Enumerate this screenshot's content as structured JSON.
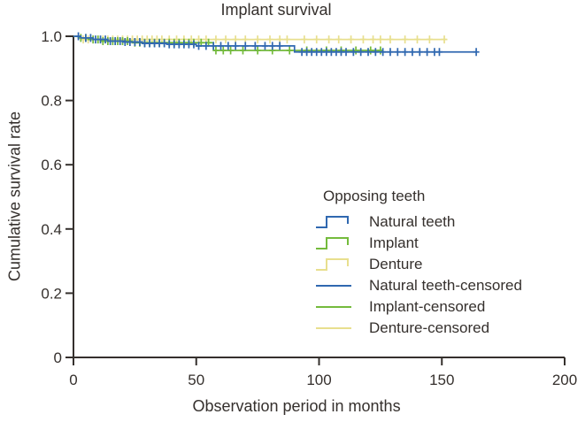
{
  "chart_data": {
    "type": "line",
    "subtype": "kaplan-meier-step",
    "title": "Implant survival",
    "xlabel": "Observation period in months",
    "ylabel": "Cumulative survival rate",
    "grid": false,
    "background": "#ffffff",
    "colors": {
      "axis": "#35302d",
      "text": "#35302d",
      "natural_teeth": "#3068b0",
      "implant": "#74bb3c",
      "denture": "#e8df8e"
    },
    "x_axis": {
      "range": [
        0,
        200
      ],
      "ticks": [
        0,
        50,
        100,
        150,
        200
      ],
      "labels": [
        "0",
        "50",
        "100",
        "150",
        "200"
      ]
    },
    "y_axis": {
      "range": [
        0,
        1.0
      ],
      "ticks": [
        0,
        0.2,
        0.4,
        0.6,
        0.8,
        1.0
      ],
      "labels": [
        "0",
        "0.2",
        "0.4",
        "0.6",
        "0.8",
        "1.0"
      ]
    },
    "legend": {
      "title": "Opposing teeth",
      "position": "center-right",
      "items": [
        {
          "label": "Natural teeth",
          "color": "#3068b0",
          "symbol": "step"
        },
        {
          "label": "Implant",
          "color": "#74bb3c",
          "symbol": "step"
        },
        {
          "label": "Denture",
          "color": "#e8df8e",
          "symbol": "step"
        },
        {
          "label": "Natural teeth-censored",
          "color": "#3068b0",
          "symbol": "line"
        },
        {
          "label": "Implant-censored",
          "color": "#74bb3c",
          "symbol": "line"
        },
        {
          "label": "Denture-censored",
          "color": "#e8df8e",
          "symbol": "line"
        }
      ]
    },
    "series": [
      {
        "name": "Denture",
        "color": "#e8df8e",
        "steps": [
          [
            0,
            1.0
          ],
          [
            3,
            0.99
          ]
        ],
        "end_month": 152,
        "censored": [
          4,
          6,
          8,
          10,
          12,
          14,
          16,
          18,
          20,
          22,
          24,
          26,
          28,
          30,
          32,
          34,
          36,
          39,
          42,
          45,
          48,
          51,
          54,
          58,
          62,
          66,
          70,
          75,
          80,
          84,
          87,
          94,
          99,
          104,
          108,
          113,
          118,
          122,
          125,
          129,
          135,
          140,
          145,
          151
        ]
      },
      {
        "name": "Implant",
        "color": "#74bb3c",
        "steps": [
          [
            0,
            1.0
          ],
          [
            2,
            0.995
          ],
          [
            6,
            0.99
          ],
          [
            11,
            0.985
          ],
          [
            24,
            0.98
          ],
          [
            57,
            0.956
          ]
        ],
        "end_month": 125,
        "censored": [
          3,
          5,
          8,
          10,
          12,
          14,
          16,
          18,
          20,
          22,
          25,
          27,
          29,
          31,
          33,
          35,
          37,
          39,
          41,
          43,
          45,
          47,
          49,
          52,
          55,
          58,
          61,
          64,
          69,
          75,
          81,
          88,
          95,
          103,
          109,
          115,
          121,
          125
        ]
      },
      {
        "name": "Natural teeth",
        "color": "#3068b0",
        "steps": [
          [
            0,
            1.0
          ],
          [
            3,
            0.995
          ],
          [
            8,
            0.99
          ],
          [
            14,
            0.985
          ],
          [
            21,
            0.982
          ],
          [
            28,
            0.978
          ],
          [
            38,
            0.975
          ],
          [
            50,
            0.97
          ],
          [
            90,
            0.951
          ]
        ],
        "end_month": 164,
        "censored": [
          2,
          5,
          7,
          9,
          11,
          13,
          15,
          17,
          19,
          21,
          23,
          25,
          27,
          29,
          31,
          33,
          35,
          37,
          39,
          41,
          43,
          45,
          47,
          49,
          51,
          54,
          57,
          60,
          63,
          66,
          70,
          74,
          78,
          81,
          84,
          93,
          95,
          97,
          99,
          101,
          103,
          105,
          107,
          109,
          111,
          114,
          117,
          120,
          123,
          126,
          129,
          132,
          135,
          138,
          141,
          144,
          147,
          149,
          164
        ]
      }
    ]
  }
}
